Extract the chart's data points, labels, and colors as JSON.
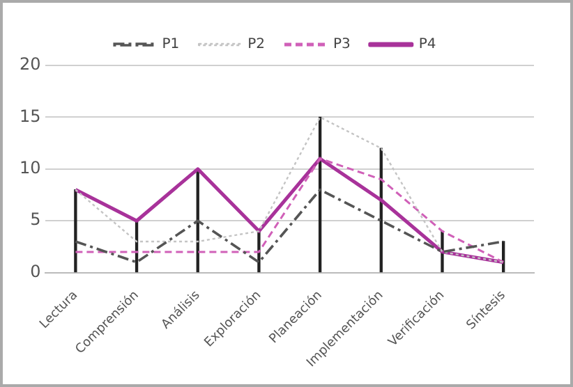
{
  "chart_data": {
    "type": "line",
    "categories": [
      "Lectura",
      "Comprensión",
      "Análisis",
      "Exploración",
      "Planeación",
      "Implementación",
      "Verificación",
      "Síntesis"
    ],
    "series": [
      {
        "name": "P1",
        "color": "#555555",
        "line_style": "dashdot",
        "values": [
          3,
          1,
          5,
          1,
          8,
          5,
          2,
          3
        ]
      },
      {
        "name": "P2",
        "color": "#c4c4c4",
        "line_style": "dotted",
        "values": [
          8,
          3,
          3,
          4,
          15,
          12,
          2,
          1
        ]
      },
      {
        "name": "P3",
        "color": "#d060b8",
        "line_style": "dashed",
        "values": [
          2,
          2,
          2,
          2,
          11,
          9,
          4,
          1
        ]
      },
      {
        "name": "P4",
        "color": "#a8329a",
        "line_style": "solid",
        "values": [
          8,
          5,
          10,
          4,
          11,
          7,
          2,
          1
        ]
      },
      {
        "type": "bar",
        "color": "#222222",
        "values": [
          8,
          5,
          10,
          4,
          15,
          12,
          4,
          3
        ]
      }
    ],
    "ylim": [
      0,
      20
    ],
    "yticks": [
      0,
      5,
      10,
      15,
      20
    ],
    "grid": "y",
    "legend": "top",
    "marker": "none"
  }
}
